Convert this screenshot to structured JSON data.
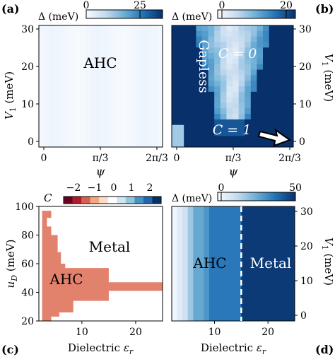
{
  "chart_data": [
    {
      "panel": "(a)",
      "type": "heatmap",
      "colorbar_label": "Δ (meV)",
      "colorbar_ticks": [
        "0",
        "25"
      ],
      "colorbar_range": [
        0,
        35
      ],
      "colormap": [
        "#f7fbff",
        "#08306b"
      ],
      "ylabel": "V₁ (meV)",
      "yticks": [
        "0",
        "10",
        "20",
        "30"
      ],
      "xlabel": "ψ",
      "xticks": [
        "0",
        "π/3",
        "2π/3"
      ],
      "annotation": "AHC",
      "note_values": "gap ~1-2 meV everywhere (near-white)"
    },
    {
      "panel": "(b)",
      "type": "heatmap",
      "colorbar_label": "Δ (meV)",
      "colorbar_ticks": [
        "0",
        "20"
      ],
      "colorbar_range": [
        0,
        22
      ],
      "colormap": [
        "#f7fbff",
        "#08306b"
      ],
      "ylabel": "V₁ (meV)",
      "yticks": [
        "0",
        "10",
        "20",
        "30"
      ],
      "xlabel": "ψ",
      "xticks": [
        "0",
        "π/3",
        "2π/3"
      ],
      "annotations": [
        "Gapless",
        "C = 0",
        "C = 1"
      ]
    },
    {
      "panel": "(c)",
      "type": "heatmap",
      "colorbar_label": "C",
      "colorbar_ticks": [
        "−2",
        "−1",
        "0",
        "1",
        "2"
      ],
      "colorbar_colors": [
        "#67001f",
        "#b2182b",
        "#d6604d",
        "#f4a582",
        "#fddbc7",
        "#ffffff",
        "#d1e5f0",
        "#92c5de",
        "#4393c3",
        "#2166ac",
        "#053061"
      ],
      "ylabel": "u_D (meV)",
      "yticks": [
        "20",
        "40",
        "60",
        "80",
        "100"
      ],
      "ylim": [
        20,
        100
      ],
      "xlabel": "Dielectric ε_r",
      "xticks": [
        "10",
        "20"
      ],
      "xlim": [
        2,
        25
      ],
      "annotations": [
        "Metal",
        "AHC"
      ],
      "ahc_color": "#e3826c"
    },
    {
      "panel": "(d)",
      "type": "heatmap",
      "colorbar_label": "Δ (meV)",
      "colorbar_ticks": [
        "0",
        "50"
      ],
      "colorbar_range": [
        0,
        50
      ],
      "colormap": [
        "#f7fbff",
        "#08306b"
      ],
      "ylabel": "V₁ (meV)",
      "yticks": [
        "0",
        "10",
        "20",
        "30"
      ],
      "xlabel": "Dielectric ε_r",
      "xticks": [
        "10",
        "20"
      ],
      "xlim": [
        2,
        25
      ],
      "annotations": [
        "AHC",
        "Metal"
      ],
      "transition_eps": 15,
      "columns": [
        {
          "eps": 2.5,
          "gap": 2
        },
        {
          "eps": 3.5,
          "gap": 6
        },
        {
          "eps": 4.5,
          "gap": 10
        },
        {
          "eps": 5.5,
          "gap": 18
        },
        {
          "eps": 7,
          "gap": 26
        },
        {
          "eps": 8.5,
          "gap": 30
        },
        {
          "eps": 12,
          "gap": 36
        },
        {
          "eps": 20,
          "gap": 48
        }
      ]
    }
  ],
  "labels": {
    "a": "(a)",
    "b": "(b)",
    "c": "(c)",
    "d": "(d)"
  }
}
